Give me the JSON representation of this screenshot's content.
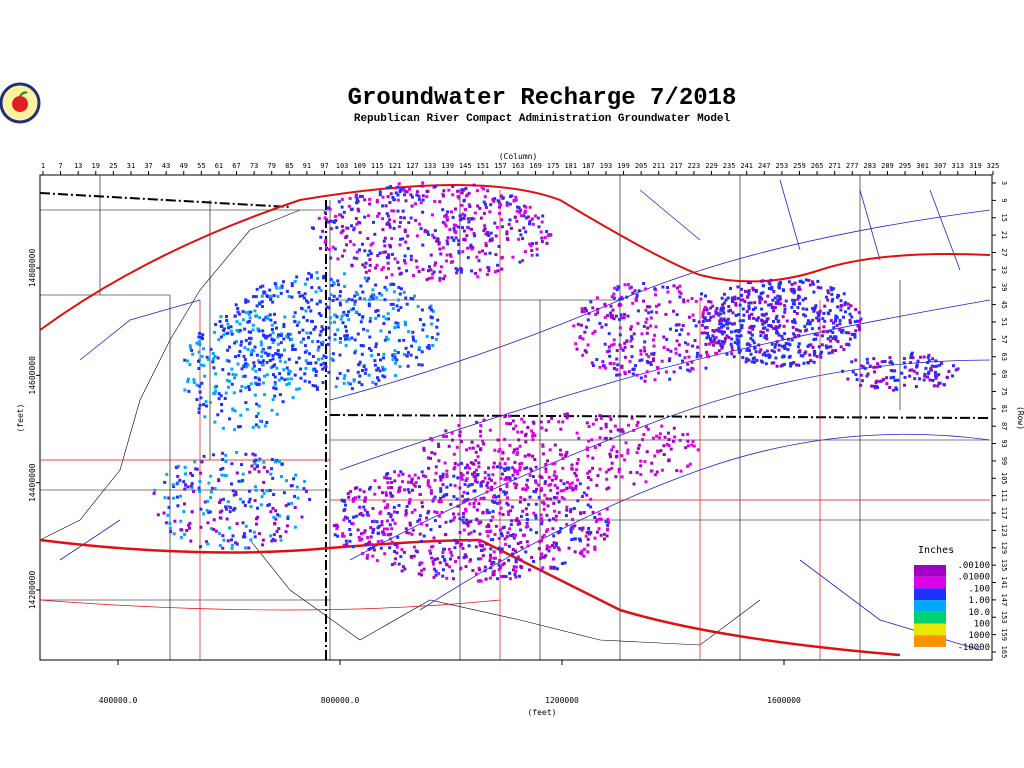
{
  "title": "Groundwater Recharge 7/2018",
  "subtitle": "Republican River Compact Administration Groundwater Model",
  "column_axis": {
    "label": "(Column)",
    "ticks": [
      1,
      7,
      13,
      19,
      25,
      31,
      37,
      43,
      49,
      55,
      61,
      67,
      73,
      79,
      85,
      91,
      97,
      103,
      109,
      115,
      121,
      127,
      133,
      139,
      145,
      151,
      157,
      163,
      169,
      175,
      181,
      187,
      193,
      199,
      205,
      211,
      217,
      223,
      229,
      235,
      241,
      247,
      253,
      259,
      265,
      271,
      277,
      283,
      289,
      295,
      301,
      307,
      313,
      319,
      325
    ]
  },
  "row_axis": {
    "label": "(Row)",
    "ticks": [
      3,
      9,
      15,
      21,
      27,
      33,
      39,
      45,
      51,
      57,
      63,
      69,
      75,
      81,
      87,
      93,
      99,
      105,
      111,
      117,
      123,
      129,
      135,
      141,
      147,
      153,
      159,
      165
    ]
  },
  "x_axis": {
    "label": "(feet)",
    "ticks": [
      {
        "value": 400000,
        "label": "400000.0"
      },
      {
        "value": 800000,
        "label": "800000.0"
      },
      1200000,
      1600000
    ]
  },
  "y_axis": {
    "label": "(feet)",
    "ticks": [
      14800000,
      14600000,
      14400000,
      14200000
    ]
  },
  "legend": {
    "title": "Inches",
    "entries": [
      {
        "label": ".00100",
        "color": "#a000c8"
      },
      {
        "label": ".01000",
        "color": "#e000e8"
      },
      {
        "label": ".100",
        "color": "#2030ff"
      },
      {
        "label": "1.00",
        "color": "#00a8ff"
      },
      {
        "label": "10.0",
        "color": "#00d070"
      },
      {
        "label": "100",
        "color": "#e8e800"
      },
      {
        "label": "1000",
        "color": "#ff9000"
      },
      {
        "label": "-10000",
        "color": "#ff9000"
      }
    ]
  }
}
